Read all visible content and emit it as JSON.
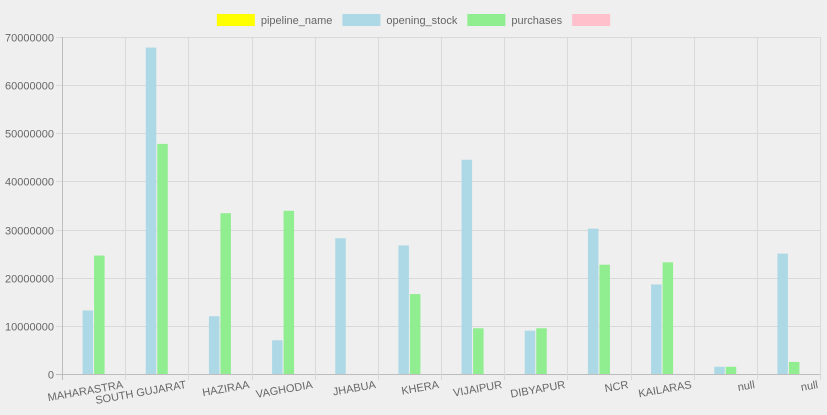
{
  "chart_data": {
    "type": "bar",
    "categories": [
      "MAHARASTRA",
      "SOUTH GUJARAT",
      "HAZIRAA",
      "VAGHODIA",
      "JHABUA",
      "KHERA",
      "VIJAIPUR",
      "DIBYAPUR",
      "NCR",
      "KAILARAS",
      "null",
      "null"
    ],
    "series": [
      {
        "name": "pipeline_name",
        "color": "#ffff00",
        "values": [
          0,
          0,
          0,
          0,
          0,
          0,
          0,
          0,
          0,
          0,
          0,
          0
        ]
      },
      {
        "name": "opening_stock",
        "color": "#add8e6",
        "values": [
          13200000,
          67800000,
          12000000,
          7000000,
          28200000,
          26700000,
          44500000,
          9000000,
          30200000,
          18600000,
          1500000,
          25000000
        ]
      },
      {
        "name": "purchases",
        "color": "#90ee90",
        "values": [
          24600000,
          47800000,
          33400000,
          33900000,
          0,
          16600000,
          9500000,
          9500000,
          22700000,
          23200000,
          1500000,
          2500000
        ]
      },
      {
        "name": "",
        "color": "#ffc0cb",
        "values": [
          0,
          0,
          0,
          0,
          0,
          0,
          0,
          0,
          0,
          0,
          0,
          0
        ]
      }
    ],
    "ylim": [
      0,
      70000000
    ],
    "yticks": [
      "0",
      "10000000",
      "20000000",
      "30000000",
      "40000000",
      "50000000",
      "60000000",
      "70000000"
    ],
    "grid": true,
    "legend_position": "top-center",
    "title": "",
    "xlabel": "",
    "ylabel": ""
  }
}
